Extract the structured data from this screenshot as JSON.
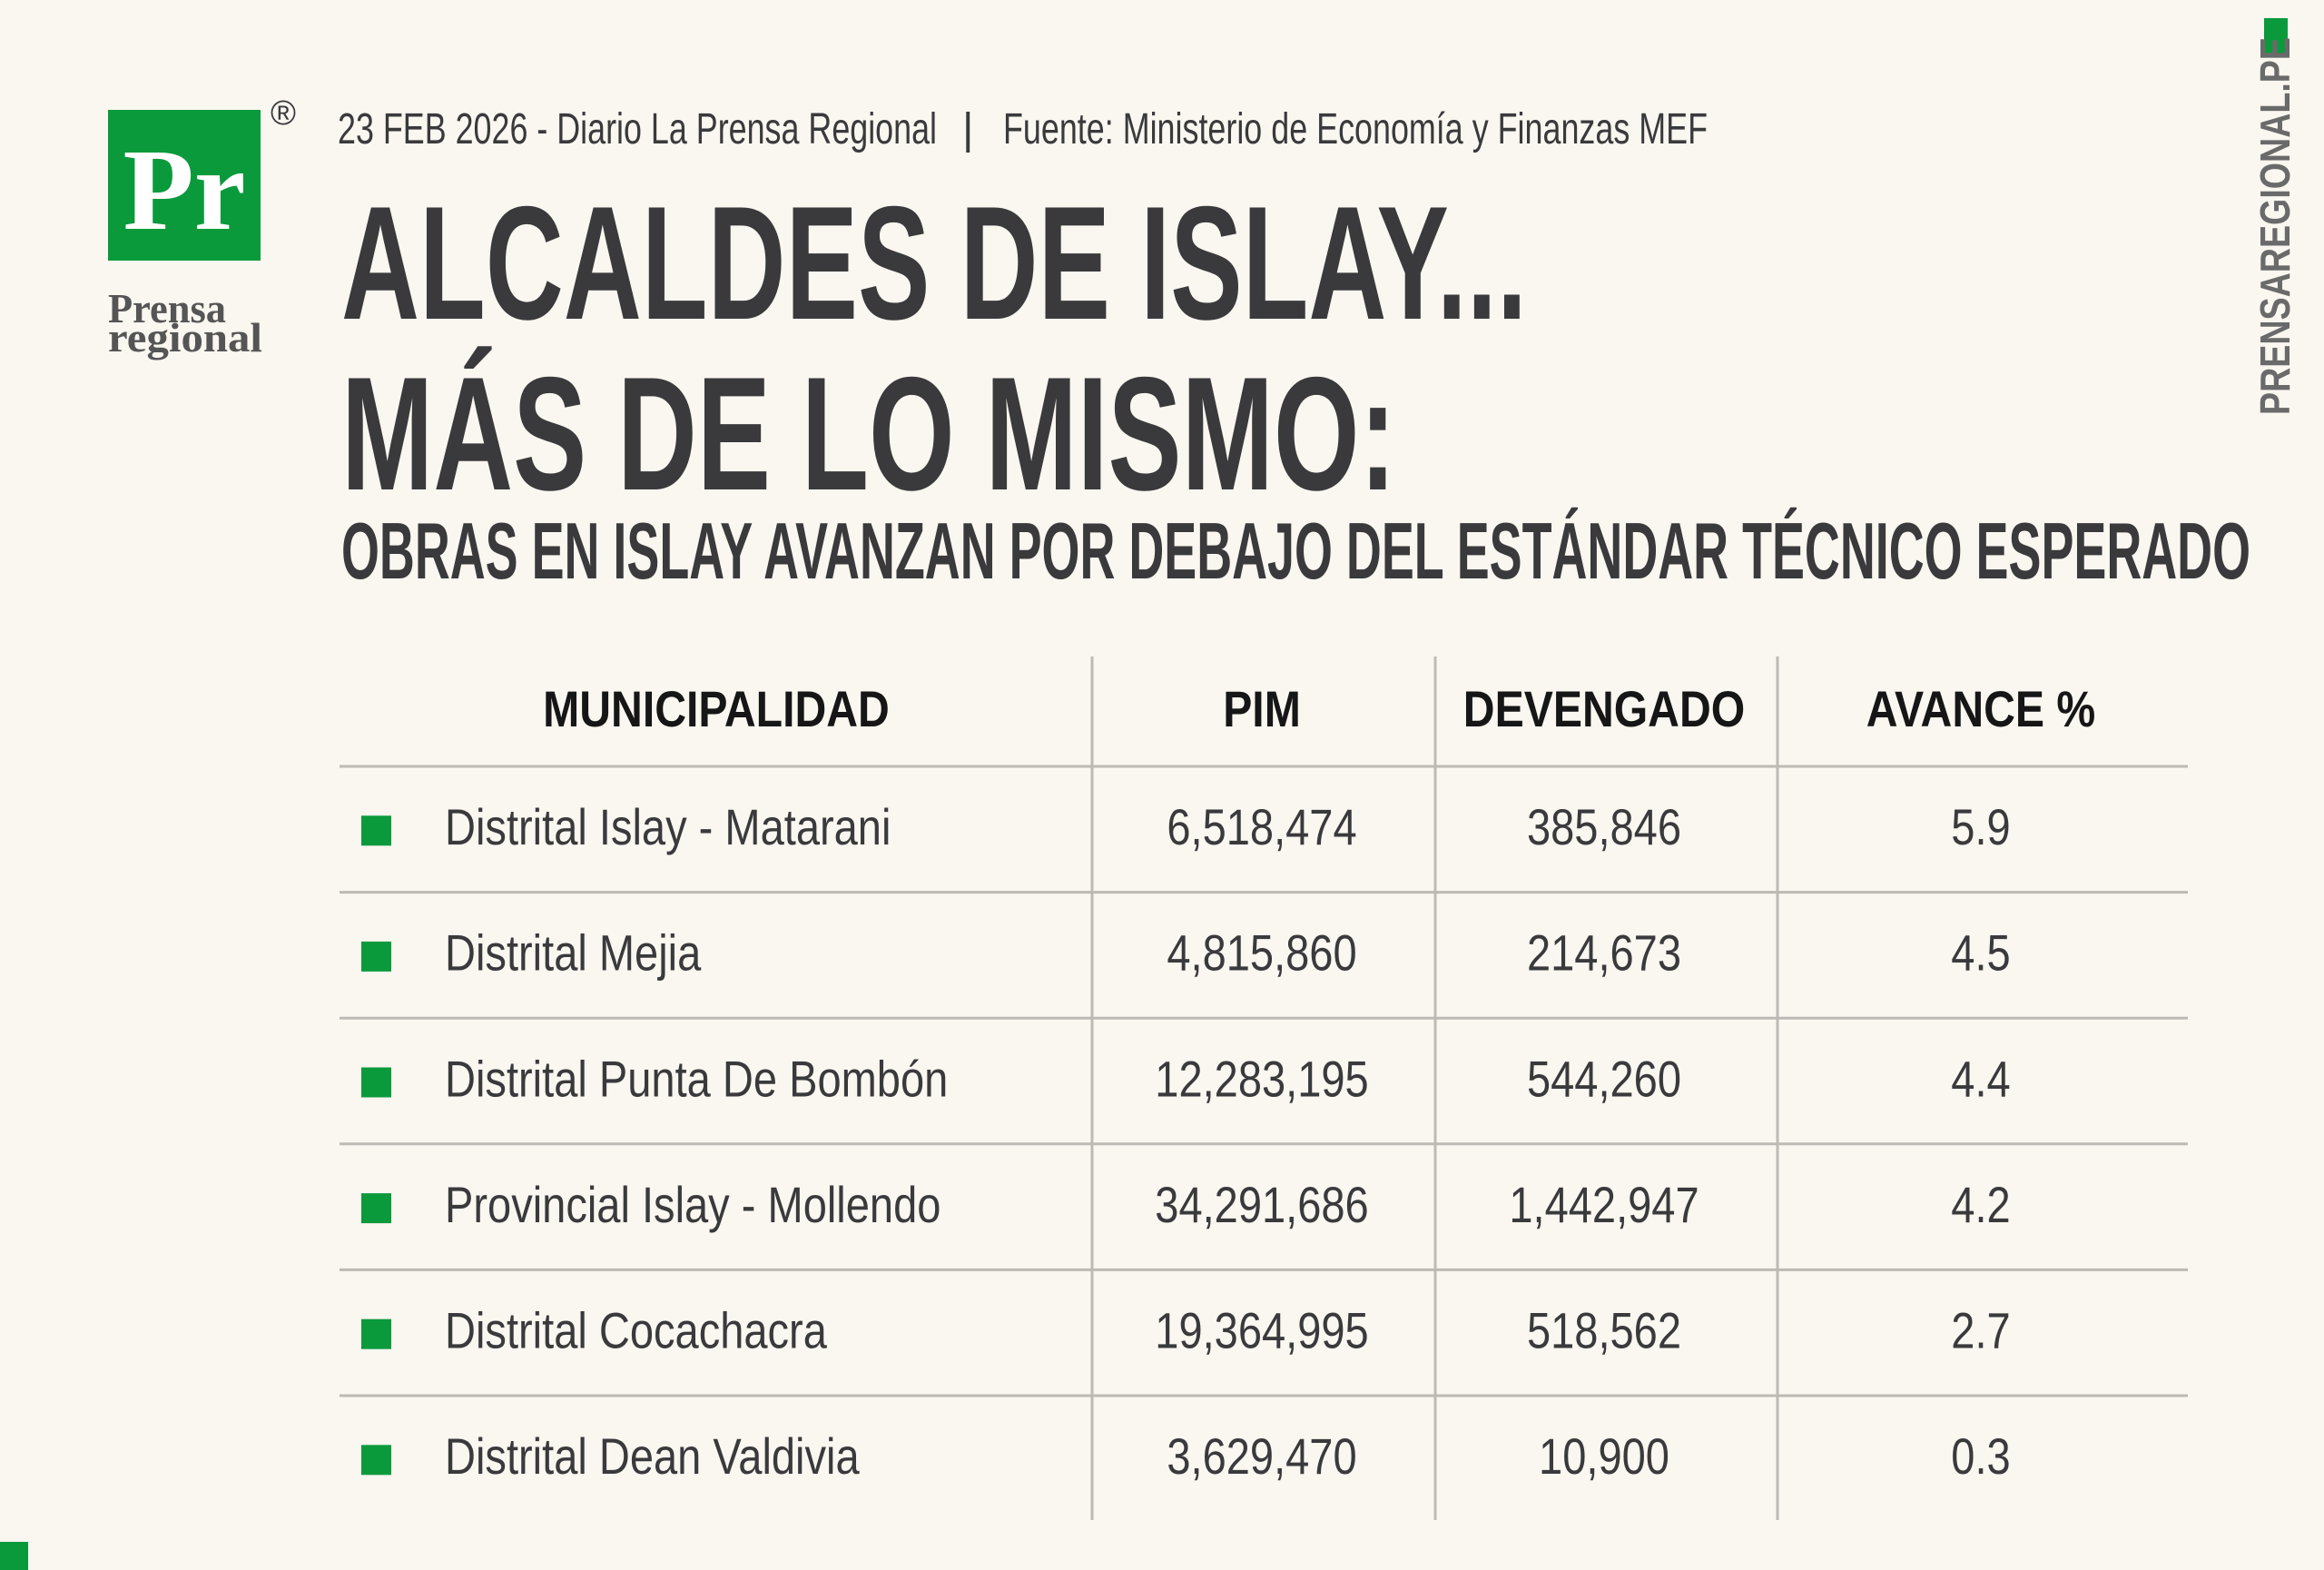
{
  "logo": {
    "mark": "Pr",
    "registered": "®",
    "name_line1": "Prensa",
    "name_line2": "regional"
  },
  "header": {
    "dateline": "23 FEB 2026 - Diario La Prensa Regional",
    "separator": "|",
    "source": "Fuente: Ministerio de Economía y Finanzas MEF",
    "title_line1": "ALCALDES DE ISLAY...",
    "title_line2": "MÁS DE LO MISMO:",
    "subtitle": "OBRAS EN ISLAY AVANZAN POR DEBAJO DEL ESTÁNDAR TÉCNICO ESPERADO"
  },
  "side_text": "PRENSAREGIONAL.PE",
  "table": {
    "columns": [
      "MUNICIPALIDAD",
      "PIM",
      "DEVENGADO",
      "AVANCE %"
    ],
    "rows": [
      [
        "Distrital Islay - Matarani",
        "6,518,474",
        "385,846",
        "5.9"
      ],
      [
        "Distrital Mejia",
        "4,815,860",
        "214,673",
        "4.5"
      ],
      [
        "Distrital Punta De Bombón",
        "12,283,195",
        "544,260",
        "4.4"
      ],
      [
        "Provincial Islay - Mollendo",
        "34,291,686",
        "1,442,947",
        "4.2"
      ],
      [
        "Distrital Cocachacra",
        "19,364,995",
        "518,562",
        "2.7"
      ],
      [
        "Distrital Dean Valdivia",
        "3,629,470",
        "10,900",
        "0.3"
      ]
    ]
  }
}
